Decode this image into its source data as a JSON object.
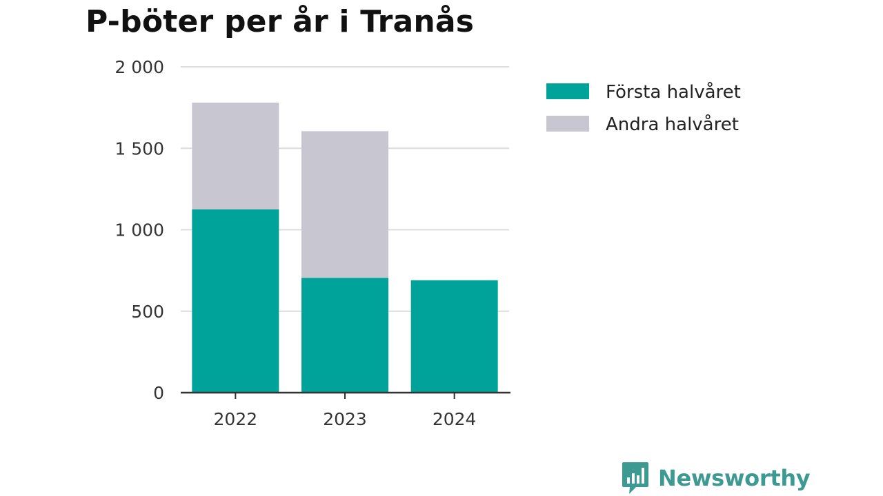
{
  "chart_data": {
    "type": "bar",
    "stacked": true,
    "title": "P-böter per år i Tranås",
    "xlabel": "",
    "ylabel": "",
    "categories": [
      "2022",
      "2023",
      "2024"
    ],
    "series": [
      {
        "name": "Första halvåret",
        "color": "#00a39a",
        "values": [
          1125,
          705,
          690
        ]
      },
      {
        "name": "Andra halvåret",
        "color": "#c8c7d1",
        "values": [
          655,
          900,
          0
        ]
      }
    ],
    "ylim": [
      0,
      2000
    ],
    "yticks": [
      0,
      500,
      1000,
      1500,
      2000
    ],
    "ytick_labels": [
      "0",
      "500",
      "1 000",
      "1 500",
      "2 000"
    ],
    "grid": true,
    "legend_position": "top-right"
  },
  "branding": {
    "name": "Newsworthy",
    "logo_icon": "bar-chart-speech-bubble-icon",
    "color": "#3d9a93"
  }
}
